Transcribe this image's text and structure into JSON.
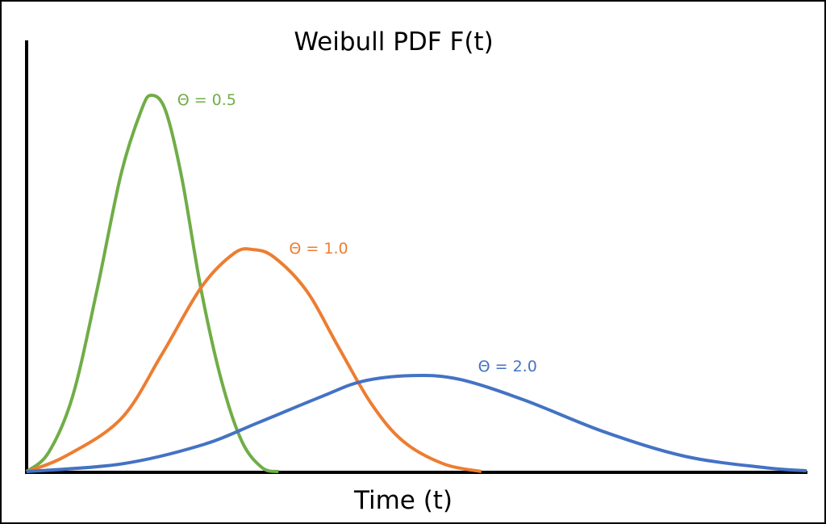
{
  "chart_data": {
    "type": "line",
    "title": "Weibull PDF F(t)",
    "xlabel": "Time (t)",
    "ylabel": "",
    "xlim": [
      0,
      10
    ],
    "ylim": [
      0,
      1.15
    ],
    "grid": false,
    "legend": "inline labels near each peak",
    "series": [
      {
        "name": "Θ = 0.5",
        "color": "#70AD47",
        "x": [
          0,
          0.28,
          0.59,
          0.9,
          1.21,
          1.47,
          1.6,
          1.78,
          1.99,
          2.24,
          2.5,
          2.76,
          3.02,
          3.23
        ],
        "y": [
          0,
          0.05,
          0.2,
          0.48,
          0.79,
          0.96,
          1.0,
          0.96,
          0.78,
          0.48,
          0.24,
          0.08,
          0.01,
          0
        ]
      },
      {
        "name": "Θ = 1.0",
        "color": "#ED7D31",
        "x": [
          0,
          0.49,
          1.21,
          1.73,
          2.24,
          2.66,
          2.9,
          3.17,
          3.59,
          4.0,
          4.42,
          4.83,
          5.35,
          5.83
        ],
        "y": [
          0,
          0.04,
          0.14,
          0.31,
          0.49,
          0.58,
          0.59,
          0.57,
          0.48,
          0.33,
          0.18,
          0.08,
          0.02,
          0
        ]
      },
      {
        "name": "Θ = 2.0",
        "color": "#4472C4",
        "x": [
          0,
          1.21,
          2.24,
          2.97,
          3.79,
          4.31,
          4.96,
          5.55,
          6.38,
          7.41,
          8.45,
          9.48,
          10.0
        ],
        "y": [
          0,
          0.02,
          0.07,
          0.13,
          0.2,
          0.24,
          0.255,
          0.245,
          0.19,
          0.105,
          0.04,
          0.01,
          0.002
        ]
      }
    ]
  }
}
